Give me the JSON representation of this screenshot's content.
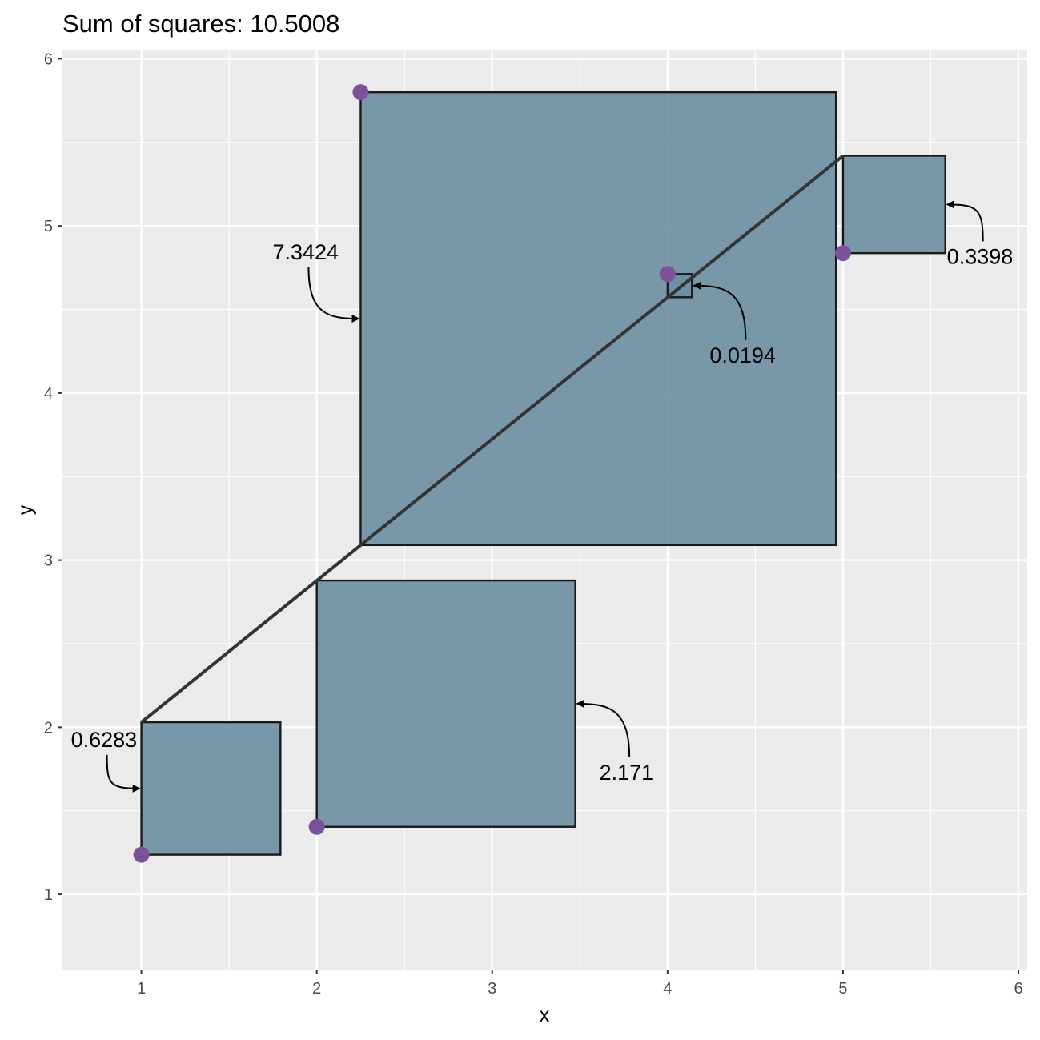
{
  "chart_data": {
    "type": "scatter",
    "title": "Sum of squares: 10.5008",
    "xlabel": "x",
    "ylabel": "y",
    "xlim": [
      0.55,
      6.05
    ],
    "ylim": [
      0.55,
      6.05
    ],
    "x_ticks": [
      1,
      2,
      3,
      4,
      5,
      6
    ],
    "y_ticks": [
      1,
      2,
      3,
      4,
      5,
      6
    ],
    "grid": true,
    "colors": {
      "panel": "#ebebeb",
      "grid": "#ffffff",
      "square_fill": "#6b8ea2",
      "square_stroke": "#1a1a1a",
      "point": "#7b519c",
      "line": "#333333"
    },
    "fit_line": {
      "x": [
        1,
        5
      ],
      "y": [
        2.03,
        5.42
      ]
    },
    "points": [
      {
        "x": 1,
        "y": 1.237,
        "fitted": 2.03,
        "square_label": "0.6283"
      },
      {
        "x": 2,
        "y": 1.404,
        "fitted": 2.878,
        "square_label": "2.171"
      },
      {
        "x": 2.25,
        "y": 5.8,
        "fitted": 3.09,
        "square_label": "7.3424"
      },
      {
        "x": 4,
        "y": 4.712,
        "fitted": 4.573,
        "square_label": "0.0194"
      },
      {
        "x": 5,
        "y": 4.837,
        "fitted": 5.42,
        "square_label": "0.3398"
      }
    ]
  }
}
